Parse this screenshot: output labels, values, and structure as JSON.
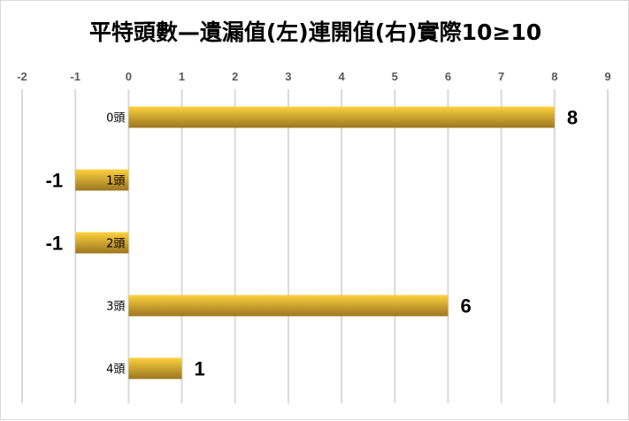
{
  "chart_data": {
    "type": "bar",
    "orientation": "horizontal",
    "title": "平特頭數—遺漏值(左)連開值(右)實際10≥10",
    "categories": [
      "0頭",
      "1頭",
      "2頭",
      "3頭",
      "4頭"
    ],
    "values": [
      8,
      -1,
      -1,
      6,
      1
    ],
    "xlim": [
      -2,
      9
    ],
    "x_ticks": [
      "-2",
      "-1",
      "0",
      "1",
      "2",
      "3",
      "4",
      "5",
      "6",
      "7",
      "8",
      "9"
    ],
    "axis_position": "top",
    "grid": true,
    "legend": "none",
    "colors": {
      "bar_top": "#fdd13f",
      "bar_bottom": "#9c7620",
      "grid": "#d9d9d9",
      "tick_label": "#595959"
    }
  }
}
